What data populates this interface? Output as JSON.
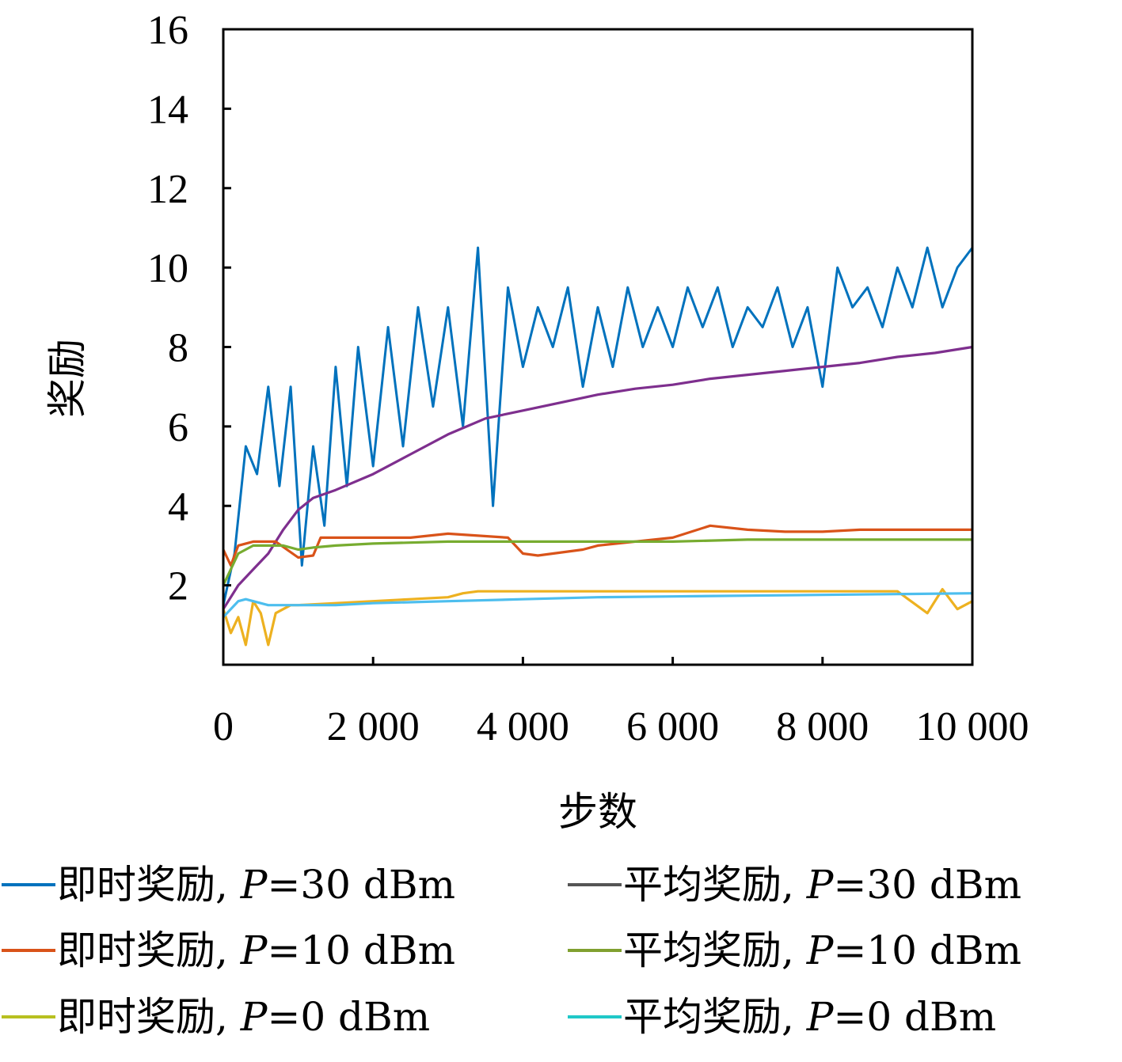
{
  "chart_data": {
    "type": "line",
    "xlabel": "步数",
    "ylabel": "奖励",
    "xlim": [
      0,
      10000
    ],
    "ylim": [
      0,
      16
    ],
    "x_ticks": [
      0,
      2000,
      4000,
      6000,
      8000,
      10000
    ],
    "x_tick_labels": [
      "0",
      "2 000",
      "4 000",
      "6 000",
      "8 000",
      "10 000"
    ],
    "y_ticks": [
      2,
      4,
      6,
      8,
      10,
      12,
      14,
      16
    ],
    "y_tick_labels": [
      "2",
      "4",
      "6",
      "8",
      "10",
      "12",
      "14",
      "16"
    ],
    "grid": false,
    "legend_position": "bottom",
    "series": [
      {
        "name": "即时奖励, P=30 dBm",
        "legend_label": {
          "prefix": "即时奖励, ",
          "var": "P",
          "suffix": "=30 dBm"
        },
        "color": "#0072BD",
        "x": [
          0,
          150,
          300,
          450,
          600,
          750,
          900,
          1050,
          1200,
          1350,
          1500,
          1650,
          1800,
          2000,
          2200,
          2400,
          2600,
          2800,
          3000,
          3200,
          3400,
          3600,
          3800,
          4000,
          4200,
          4400,
          4600,
          4800,
          5000,
          5200,
          5400,
          5600,
          5800,
          6000,
          6200,
          6400,
          6600,
          6800,
          7000,
          7200,
          7400,
          7600,
          7800,
          8000,
          8200,
          8400,
          8600,
          8800,
          9000,
          9200,
          9400,
          9600,
          9800,
          10000
        ],
        "y": [
          1.5,
          2.8,
          5.5,
          4.8,
          7.0,
          4.5,
          7.0,
          2.5,
          5.5,
          3.5,
          7.5,
          4.5,
          8.0,
          5.0,
          8.5,
          5.5,
          9.0,
          6.5,
          9.0,
          6.0,
          10.5,
          4.0,
          9.5,
          7.5,
          9.0,
          8.0,
          9.5,
          7.0,
          9.0,
          7.5,
          9.5,
          8.0,
          9.0,
          8.0,
          9.5,
          8.5,
          9.5,
          8.0,
          9.0,
          8.5,
          9.5,
          8.0,
          9.0,
          7.0,
          10.0,
          9.0,
          9.5,
          8.5,
          10.0,
          9.0,
          10.5,
          9.0,
          10.0,
          10.5
        ]
      },
      {
        "name": "平均奖励, P=30 dBm",
        "legend_label": {
          "prefix": "平均奖励, ",
          "var": "P",
          "suffix": "=30 dBm"
        },
        "color": "#7E2F8E",
        "legend_color": "#555555",
        "x": [
          0,
          200,
          400,
          600,
          800,
          1000,
          1200,
          1500,
          2000,
          2500,
          3000,
          3500,
          4000,
          4500,
          5000,
          5500,
          6000,
          6500,
          7000,
          7500,
          8000,
          8500,
          9000,
          9500,
          10000
        ],
        "y": [
          1.4,
          2.0,
          2.4,
          2.8,
          3.4,
          3.9,
          4.2,
          4.4,
          4.8,
          5.3,
          5.8,
          6.2,
          6.4,
          6.6,
          6.8,
          6.95,
          7.05,
          7.2,
          7.3,
          7.4,
          7.5,
          7.6,
          7.75,
          7.85,
          8.0
        ]
      },
      {
        "name": "即时奖励, P=10 dBm",
        "legend_label": {
          "prefix": "即时奖励, ",
          "var": "P",
          "suffix": "=10 dBm"
        },
        "color": "#D95319",
        "x": [
          0,
          100,
          200,
          400,
          700,
          1000,
          1200,
          1300,
          2000,
          2500,
          3000,
          3800,
          4000,
          4200,
          4800,
          5000,
          5500,
          6000,
          6500,
          7000,
          7500,
          8000,
          8500,
          9000,
          9500,
          10000
        ],
        "y": [
          2.9,
          2.5,
          3.0,
          3.1,
          3.1,
          2.7,
          2.75,
          3.2,
          3.2,
          3.2,
          3.3,
          3.2,
          2.8,
          2.75,
          2.9,
          3.0,
          3.1,
          3.2,
          3.5,
          3.4,
          3.35,
          3.35,
          3.4,
          3.4,
          3.4,
          3.4
        ]
      },
      {
        "name": "平均奖励, P=10 dBm",
        "legend_label": {
          "prefix": "平均奖励, ",
          "var": "P",
          "suffix": "=10 dBm"
        },
        "color": "#77AC30",
        "legend_color": "#80A030",
        "x": [
          0,
          200,
          400,
          600,
          800,
          1000,
          1200,
          1500,
          2000,
          3000,
          4000,
          5000,
          6000,
          7000,
          8000,
          9000,
          10000
        ],
        "y": [
          2.0,
          2.8,
          3.0,
          3.0,
          3.0,
          2.9,
          2.95,
          3.0,
          3.05,
          3.1,
          3.1,
          3.1,
          3.1,
          3.15,
          3.15,
          3.15,
          3.15
        ]
      },
      {
        "name": "即时奖励, P=0 dBm",
        "legend_label": {
          "prefix": "即时奖励, ",
          "var": "P",
          "suffix": "=0 dBm"
        },
        "color": "#EDB120",
        "legend_color": "#B8C020",
        "x": [
          0,
          100,
          200,
          300,
          400,
          500,
          600,
          700,
          800,
          900,
          1000,
          1500,
          2000,
          2500,
          3000,
          3200,
          3400,
          4000,
          5000,
          6000,
          7000,
          8000,
          9000,
          9400,
          9600,
          9800,
          10000
        ],
        "y": [
          1.4,
          0.8,
          1.2,
          0.5,
          1.6,
          1.3,
          0.5,
          1.3,
          1.4,
          1.5,
          1.5,
          1.55,
          1.6,
          1.65,
          1.7,
          1.8,
          1.85,
          1.85,
          1.85,
          1.85,
          1.85,
          1.85,
          1.85,
          1.3,
          1.9,
          1.4,
          1.6
        ]
      },
      {
        "name": "平均奖励, P=0 dBm",
        "legend_label": {
          "prefix": "平均奖励, ",
          "var": "P",
          "suffix": "=0 dBm"
        },
        "color": "#4DBEEE",
        "legend_color": "#20C8C8",
        "x": [
          0,
          100,
          200,
          300,
          400,
          600,
          800,
          1000,
          1500,
          2000,
          3000,
          4000,
          5000,
          6000,
          7000,
          8000,
          9000,
          10000
        ],
        "y": [
          1.2,
          1.4,
          1.6,
          1.65,
          1.6,
          1.5,
          1.5,
          1.5,
          1.5,
          1.55,
          1.6,
          1.65,
          1.7,
          1.72,
          1.74,
          1.76,
          1.78,
          1.8
        ]
      }
    ]
  }
}
